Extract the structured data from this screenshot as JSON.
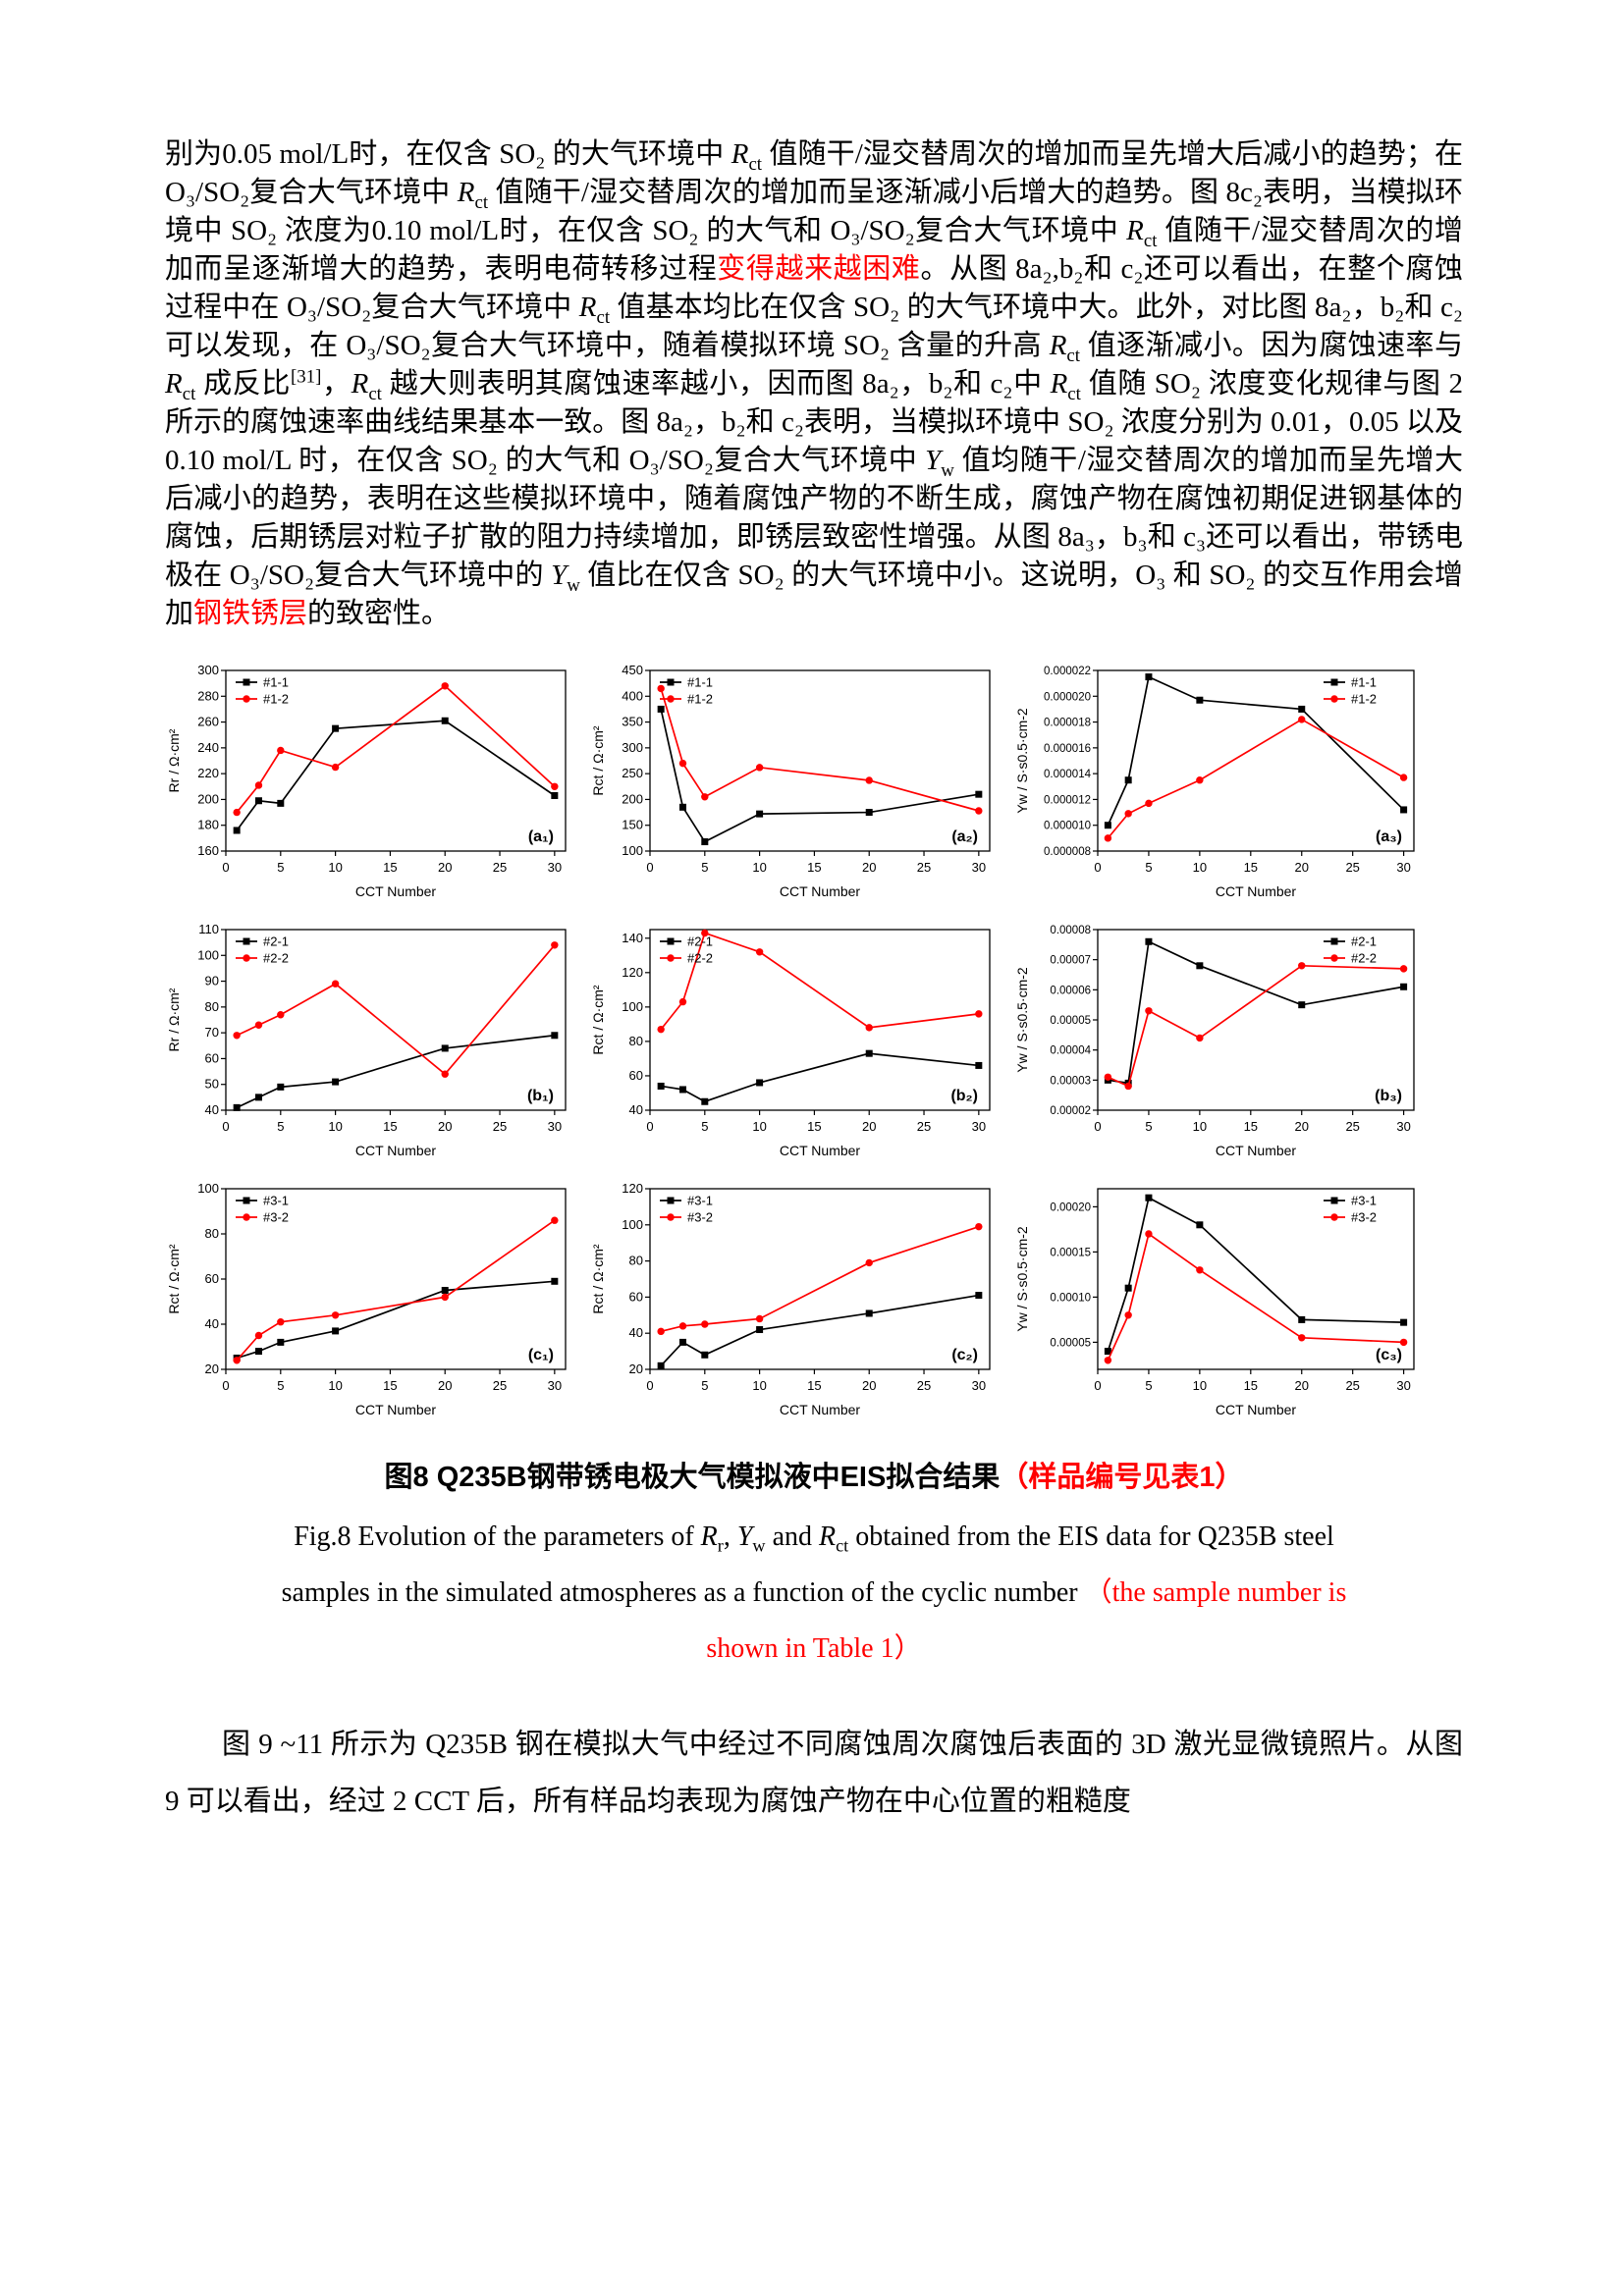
{
  "page": {
    "bg": "#ffffff",
    "text_color": "#000000",
    "red": "#ff0000"
  },
  "body": {
    "p1": [
      {
        "t": "别为0.05 mol/L时，在仅含 SO₂ 的大气环境中 "
      },
      {
        "t": "R",
        "s": "i"
      },
      {
        "t": "ct",
        "s": "sub"
      },
      {
        "t": " 值随干/湿交替周次的增加而呈先增大后减小的趋势；在 O₃/SO₂复合大气环境中 "
      },
      {
        "t": "R",
        "s": "i"
      },
      {
        "t": "ct",
        "s": "sub"
      },
      {
        "t": " 值随干/湿交替周次的增加而呈逐渐减小后增大的趋势。图 8c₂表明，当模拟环境中 SO₂ 浓度为0.10 mol/L时，在仅含 SO₂ 的大气和 O₃/SO₂复合大气环境中 "
      },
      {
        "t": "R",
        "s": "i"
      },
      {
        "t": "ct",
        "s": "sub"
      },
      {
        "t": " 值随干/湿交替周次的增加而呈逐渐增大的趋势，表明电荷转移过程"
      },
      {
        "t": "变得越来越困难",
        "s": "red"
      },
      {
        "t": "。从图 8a₂,b₂和 c₂还可以看出，在整个腐蚀过程中在 O₃/SO₂复合大气环境中 "
      },
      {
        "t": "R",
        "s": "i"
      },
      {
        "t": "ct",
        "s": "sub"
      },
      {
        "t": " 值基本均比在仅含 SO₂ 的大气环境中大。此外，对比图 8a₂，b₂和 c₂可以发现，在 O₃/SO₂复合大气环境中，随着模拟环境 SO₂ 含量的升高 "
      },
      {
        "t": "R",
        "s": "i"
      },
      {
        "t": "ct",
        "s": "sub"
      },
      {
        "t": " 值逐渐减小。因为腐蚀速率与 "
      },
      {
        "t": "R",
        "s": "i"
      },
      {
        "t": "ct",
        "s": "sub"
      },
      {
        "t": " 成反比"
      },
      {
        "t": "[31]",
        "s": "sup"
      },
      {
        "t": "，"
      },
      {
        "t": "R",
        "s": "i"
      },
      {
        "t": "ct",
        "s": "sub"
      },
      {
        "t": " 越大则表明其腐蚀速率越小，因而图 8a₂，b₂和 c₂中 "
      },
      {
        "t": "R",
        "s": "i"
      },
      {
        "t": "ct",
        "s": "sub"
      },
      {
        "t": " 值随 SO₂ 浓度变化规律与图 2 所示的腐蚀速率曲线结果基本一致。图 8a₂，b₂和 c₂表明，当模拟环境中 SO₂ 浓度分别为 0.01，0.05 以及 0.10 mol/L 时，在仅含 SO₂ 的大气和 O₃/SO₂复合大气环境中 "
      },
      {
        "t": "Y",
        "s": "i"
      },
      {
        "t": "w",
        "s": "sub"
      },
      {
        "t": " 值均随干/湿交替周次的增加而呈先增大后减小的趋势，表明在这些模拟环境中，随着腐蚀产物的不断生成，腐蚀产物在腐蚀初期促进钢基体的腐蚀，后期锈层对粒子扩散的阻力持续增加，即锈层致密性增强。从图 8a₃，b₃和 c₃还可以看出，带锈电极在 O₃/SO₂复合大气环境中的 "
      },
      {
        "t": "Y",
        "s": "i"
      },
      {
        "t": "w",
        "s": "sub"
      },
      {
        "t": " 值比在仅含 SO₂ 的大气环境中小。这说明，O₃ 和 SO₂ 的交互作用会增加"
      },
      {
        "t": "钢铁锈层",
        "s": "red"
      },
      {
        "t": "的致密性。"
      }
    ],
    "p2": "图 9 ~11 所示为 Q235B 钢在模拟大气中经过不同腐蚀周次腐蚀后表面的 3D 激光显微镜照片。从图 9 可以看出，经过 2 CCT 后，所有样品均表现为腐蚀产物在中心位置的粗糙度"
  },
  "figure": {
    "caption_cn": [
      {
        "t": "图8 Q235B钢带锈电极大气模拟液中EIS拟合结果"
      },
      {
        "t": "（样品编号见表1）",
        "s": "red"
      }
    ],
    "caption_en": [
      {
        "t": "Fig.8 Evolution of the parameters of "
      },
      {
        "t": "R",
        "s": "i"
      },
      {
        "t": "r",
        "s": "sub"
      },
      {
        "t": ", "
      },
      {
        "t": "Y",
        "s": "i"
      },
      {
        "t": "w",
        "s": "sub"
      },
      {
        "t": " and "
      },
      {
        "t": "R",
        "s": "i"
      },
      {
        "t": "ct",
        "s": "sub"
      },
      {
        "t": " obtained from the EIS data for Q235B steel samples in the simulated atmospheres as a function of the cyclic number "
      },
      {
        "t": "（the sample number is shown in Table 1）",
        "s": "red"
      }
    ]
  },
  "chart_data": {
    "type": "line",
    "xlabel": "CCT Number",
    "x": [
      1,
      3,
      5,
      10,
      20,
      30
    ],
    "xlim": [
      0,
      31
    ],
    "xticks": [
      0,
      5,
      10,
      15,
      20,
      25,
      30
    ],
    "grid": "off",
    "charts": [
      {
        "id": "a1",
        "sub": "(a₁)",
        "ylabel": "Rr / Ω·cm²",
        "ylim": [
          160,
          300
        ],
        "yticks": [
          160,
          180,
          200,
          220,
          240,
          260,
          280,
          300
        ],
        "ydec": 0,
        "legend": "tl",
        "series": [
          {
            "name": "#1-1",
            "color": "#000000",
            "marker": "square",
            "values": [
              176,
              199,
              197,
              255,
              261,
              203
            ]
          },
          {
            "name": "#1-2",
            "color": "#ff0000",
            "marker": "circle",
            "values": [
              190,
              211,
              238,
              225,
              288,
              210
            ]
          }
        ]
      },
      {
        "id": "a2",
        "sub": "(a₂)",
        "ylabel": "Rct / Ω·cm²",
        "ylim": [
          100,
          450
        ],
        "yticks": [
          100,
          150,
          200,
          250,
          300,
          350,
          400,
          450
        ],
        "ydec": 0,
        "legend": "tl",
        "series": [
          {
            "name": "#1-1",
            "color": "#000000",
            "marker": "square",
            "values": [
              375,
              185,
              118,
              172,
              175,
              210
            ]
          },
          {
            "name": "#1-2",
            "color": "#ff0000",
            "marker": "circle",
            "values": [
              415,
              270,
              205,
              262,
              237,
              178
            ]
          }
        ]
      },
      {
        "id": "a3",
        "sub": "(a₃)",
        "ylabel": "Yw / S·s0.5·cm-2",
        "ylim": [
          8e-06,
          2.2e-05
        ],
        "yticks": [
          8e-06,
          1e-05,
          1.2e-05,
          1.4e-05,
          1.6e-05,
          1.8e-05,
          2e-05,
          2.2e-05
        ],
        "ydec": 6,
        "legend": "tr",
        "series": [
          {
            "name": "#1-1",
            "color": "#000000",
            "marker": "square",
            "values": [
              1e-05,
              1.35e-05,
              2.15e-05,
              1.97e-05,
              1.9e-05,
              1.12e-05
            ]
          },
          {
            "name": "#1-2",
            "color": "#ff0000",
            "marker": "circle",
            "values": [
              9e-06,
              1.09e-05,
              1.17e-05,
              1.35e-05,
              1.82e-05,
              1.37e-05
            ]
          }
        ]
      },
      {
        "id": "b1",
        "sub": "(b₁)",
        "ylabel": "Rr / Ω·cm²",
        "ylim": [
          40,
          110
        ],
        "yticks": [
          40,
          50,
          60,
          70,
          80,
          90,
          100,
          110
        ],
        "ydec": 0,
        "legend": "tl",
        "series": [
          {
            "name": "#2-1",
            "color": "#000000",
            "marker": "square",
            "values": [
              41,
              45,
              49,
              51,
              64,
              69
            ]
          },
          {
            "name": "#2-2",
            "color": "#ff0000",
            "marker": "circle",
            "values": [
              69,
              73,
              77,
              89,
              54,
              104
            ]
          }
        ]
      },
      {
        "id": "b2",
        "sub": "(b₂)",
        "ylabel": "Rct / Ω·cm²",
        "ylim": [
          40,
          145
        ],
        "yticks": [
          40,
          60,
          80,
          100,
          120,
          140
        ],
        "ydec": 0,
        "legend": "tl",
        "series": [
          {
            "name": "#2-1",
            "color": "#000000",
            "marker": "square",
            "values": [
              54,
              52,
              45,
              56,
              73,
              66
            ]
          },
          {
            "name": "#2-2",
            "color": "#ff0000",
            "marker": "circle",
            "values": [
              87,
              103,
              143,
              132,
              88,
              96
            ]
          }
        ]
      },
      {
        "id": "b3",
        "sub": "(b₃)",
        "ylabel": "Yw / S·s0.5·cm-2",
        "ylim": [
          2e-05,
          8e-05
        ],
        "yticks": [
          2e-05,
          3e-05,
          4e-05,
          5e-05,
          6e-05,
          7e-05,
          8e-05
        ],
        "ydec": 5,
        "legend": "tr",
        "series": [
          {
            "name": "#2-1",
            "color": "#000000",
            "marker": "square",
            "values": [
              3e-05,
              2.9e-05,
              7.6e-05,
              6.8e-05,
              5.5e-05,
              6.1e-05
            ]
          },
          {
            "name": "#2-2",
            "color": "#ff0000",
            "marker": "circle",
            "values": [
              3.1e-05,
              2.8e-05,
              5.3e-05,
              4.4e-05,
              6.8e-05,
              6.7e-05
            ]
          }
        ]
      },
      {
        "id": "c1",
        "sub": "(c₁)",
        "ylabel": "Rct / Ω·cm²",
        "ylim": [
          20,
          100
        ],
        "yticks": [
          20,
          40,
          60,
          80,
          100
        ],
        "ydec": 0,
        "legend": "tl",
        "series": [
          {
            "name": "#3-1",
            "color": "#000000",
            "marker": "square",
            "values": [
              25,
              28,
              32,
              37,
              55,
              59
            ]
          },
          {
            "name": "#3-2",
            "color": "#ff0000",
            "marker": "circle",
            "values": [
              24,
              35,
              41,
              44,
              52,
              86
            ]
          }
        ]
      },
      {
        "id": "c2",
        "sub": "(c₂)",
        "ylabel": "Rct / Ω·cm²",
        "ylim": [
          20,
          120
        ],
        "yticks": [
          20,
          40,
          60,
          80,
          100,
          120
        ],
        "ydec": 0,
        "legend": "tl",
        "series": [
          {
            "name": "#3-1",
            "color": "#000000",
            "marker": "square",
            "values": [
              22,
              35,
              28,
              42,
              51,
              61
            ]
          },
          {
            "name": "#3-2",
            "color": "#ff0000",
            "marker": "circle",
            "values": [
              41,
              44,
              45,
              48,
              79,
              99
            ]
          }
        ]
      },
      {
        "id": "c3",
        "sub": "(c₃)",
        "ylabel": "Yw / S·s0.5·cm-2",
        "ylim": [
          2e-05,
          0.00022
        ],
        "yticks": [
          5e-05,
          0.0001,
          0.00015,
          0.0002
        ],
        "ydec": 5,
        "legend": "tr",
        "series": [
          {
            "name": "#3-1",
            "color": "#000000",
            "marker": "square",
            "values": [
              4e-05,
              0.00011,
              0.00021,
              0.00018,
              7.5e-05,
              7.2e-05
            ]
          },
          {
            "name": "#3-2",
            "color": "#ff0000",
            "marker": "circle",
            "values": [
              3e-05,
              8e-05,
              0.00017,
              0.00013,
              5.5e-05,
              5e-05
            ]
          }
        ]
      }
    ]
  }
}
